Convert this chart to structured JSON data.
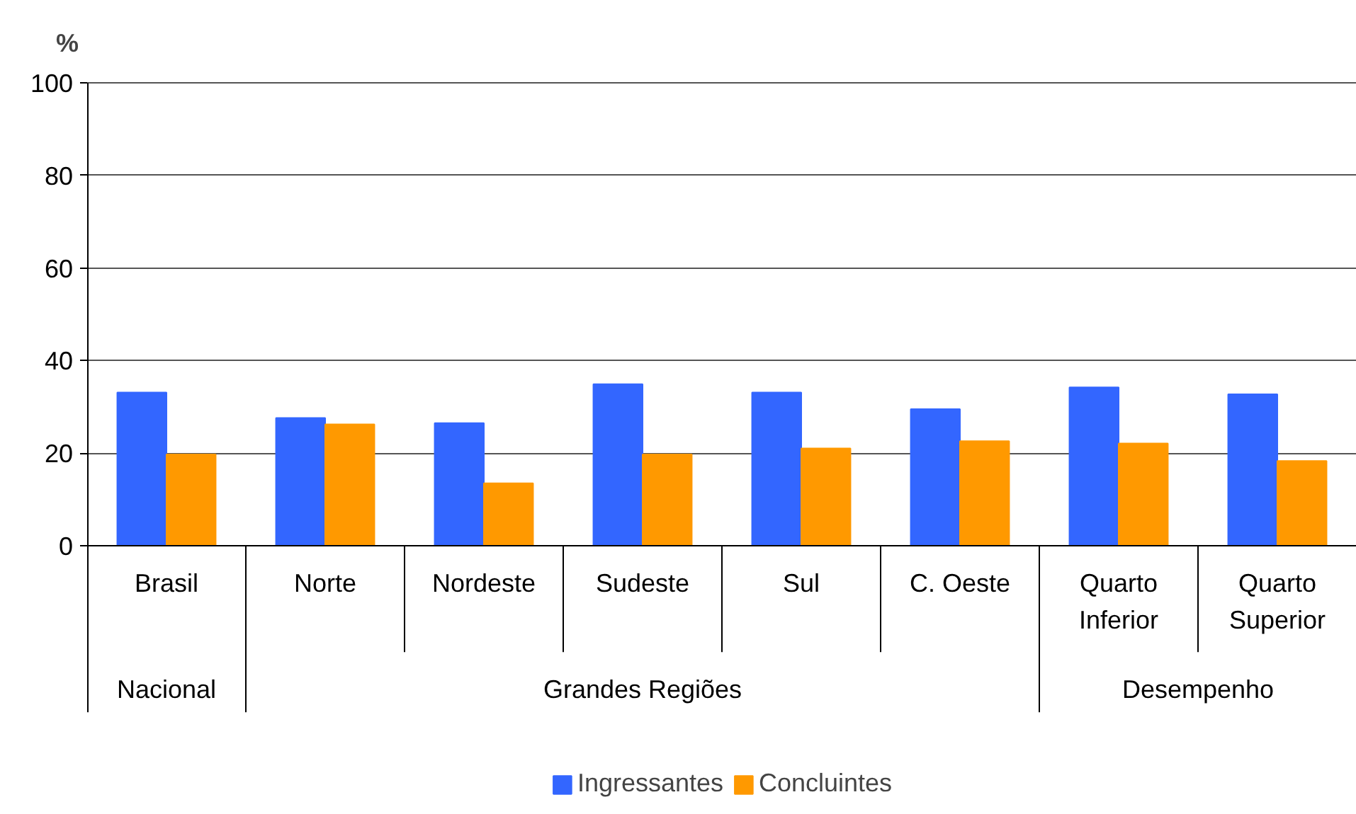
{
  "chart_data": {
    "type": "bar",
    "ylabel": "%",
    "categories": [
      "Brasil",
      "Norte",
      "Nordeste",
      "Sudeste",
      "Sul",
      "C. Oeste",
      "Quarto\nInferior",
      "Quarto\nSuperior"
    ],
    "series": [
      {
        "name": "Ingressantes",
        "color": "#3366ff",
        "values": [
          33.1,
          27.6,
          26.5,
          34.9,
          33.1,
          29.5,
          34.2,
          32.7
        ]
      },
      {
        "name": "Concluintes",
        "color": "#ff9900",
        "values": [
          19.7,
          26.2,
          13.5,
          19.7,
          21.0,
          22.6,
          22.1,
          18.3
        ]
      }
    ],
    "annotations": [
      "Nacional",
      "Grandes Regiões",
      "Desempenho"
    ],
    "ylim": [
      0,
      100
    ],
    "yticks": [
      0,
      20,
      40,
      60,
      80,
      100
    ],
    "grid": "y",
    "legend": "bottom"
  }
}
